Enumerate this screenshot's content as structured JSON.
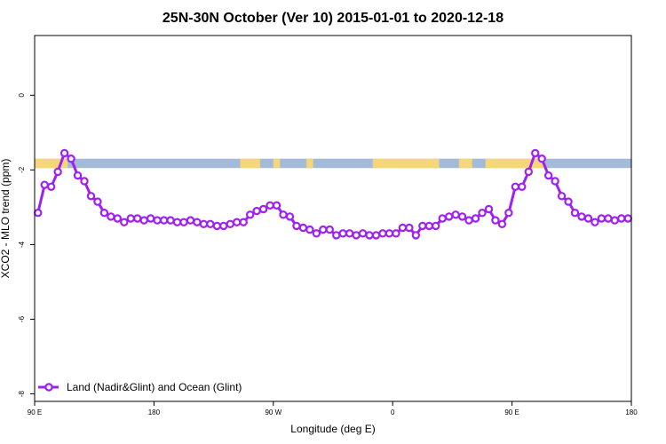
{
  "chart_data": {
    "type": "line",
    "title": "25N-30N October (Ver 10)   2015-01-01 to 2020-12-18",
    "xlabel": "Longitude (deg E)",
    "ylabel": "XCO2 - MLO trend (ppm)",
    "xlim": [
      90,
      540
    ],
    "ylim": [
      -8.2,
      1.6
    ],
    "x_ticks": [
      {
        "value": 90,
        "label": "90 E"
      },
      {
        "value": 180,
        "label": "180"
      },
      {
        "value": 270,
        "label": "90 W"
      },
      {
        "value": 360,
        "label": "0"
      },
      {
        "value": 450,
        "label": "90 E"
      },
      {
        "value": 540,
        "label": "180"
      }
    ],
    "y_ticks": [
      {
        "value": 0,
        "label": "0"
      },
      {
        "value": -2,
        "label": "-2"
      },
      {
        "value": -4,
        "label": "-4"
      },
      {
        "value": -6,
        "label": "-6"
      },
      {
        "value": -8,
        "label": "-8"
      }
    ],
    "grid": false,
    "legend_position": "bottom-left",
    "land_ocean_band": {
      "y_range": [
        -1.95,
        -1.7
      ],
      "ocean_color": "#a3bad8",
      "land_color": "#f5d67a",
      "land_segments": [
        [
          90,
          115
        ],
        [
          245,
          260
        ],
        [
          270,
          275
        ],
        [
          295,
          300
        ],
        [
          345,
          395
        ],
        [
          410,
          420
        ],
        [
          430,
          475
        ]
      ]
    },
    "series": [
      {
        "name": "Land (Nadir&Glint) and Ocean (Glint)",
        "color": "#a020f0",
        "x": [
          92.5,
          97.5,
          102.5,
          107.5,
          112.5,
          117.5,
          122.5,
          127.5,
          132.5,
          137.5,
          142.5,
          147.5,
          152.5,
          157.5,
          162.5,
          167.5,
          172.5,
          177.5,
          182.5,
          187.5,
          192.5,
          197.5,
          202.5,
          207.5,
          212.5,
          217.5,
          222.5,
          227.5,
          232.5,
          237.5,
          242.5,
          247.5,
          252.5,
          257.5,
          262.5,
          267.5,
          272.5,
          277.5,
          282.5,
          287.5,
          292.5,
          297.5,
          302.5,
          307.5,
          312.5,
          317.5,
          322.5,
          327.5,
          332.5,
          337.5,
          342.5,
          347.5,
          352.5,
          357.5,
          362.5,
          367.5,
          372.5,
          377.5,
          382.5,
          387.5,
          392.5,
          397.5,
          402.5,
          407.5,
          412.5,
          417.5,
          422.5,
          427.5,
          432.5,
          437.5,
          442.5,
          447.5,
          452.5,
          457.5,
          462.5,
          467.5,
          472.5,
          477.5,
          482.5,
          487.5,
          492.5,
          497.5,
          502.5,
          507.5,
          512.5,
          517.5,
          522.5,
          527.5,
          532.5,
          537.5
        ],
        "y": [
          -3.15,
          -2.4,
          -2.45,
          -2.05,
          -1.55,
          -1.7,
          -2.15,
          -2.3,
          -2.7,
          -2.85,
          -3.15,
          -3.25,
          -3.3,
          -3.4,
          -3.3,
          -3.3,
          -3.35,
          -3.3,
          -3.35,
          -3.35,
          -3.35,
          -3.4,
          -3.4,
          -3.35,
          -3.4,
          -3.45,
          -3.45,
          -3.5,
          -3.5,
          -3.45,
          -3.4,
          -3.4,
          -3.2,
          -3.1,
          -3.05,
          -2.95,
          -2.95,
          -3.2,
          -3.25,
          -3.5,
          -3.55,
          -3.6,
          -3.7,
          -3.6,
          -3.6,
          -3.75,
          -3.7,
          -3.7,
          -3.75,
          -3.7,
          -3.75,
          -3.75,
          -3.7,
          -3.7,
          -3.7,
          -3.55,
          -3.55,
          -3.75,
          -3.5,
          -3.5,
          -3.5,
          -3.3,
          -3.25,
          -3.2,
          -3.25,
          -3.35,
          -3.3,
          -3.15,
          -3.05,
          -3.35,
          -3.45,
          -3.15,
          -2.45,
          -2.45,
          -2.05,
          -1.55,
          -1.7,
          -2.15,
          -2.3,
          -2.7,
          -2.85,
          -3.15,
          -3.25,
          -3.3,
          -3.4,
          -3.3,
          -3.3,
          -3.35,
          -3.3,
          -3.3
        ]
      }
    ]
  }
}
